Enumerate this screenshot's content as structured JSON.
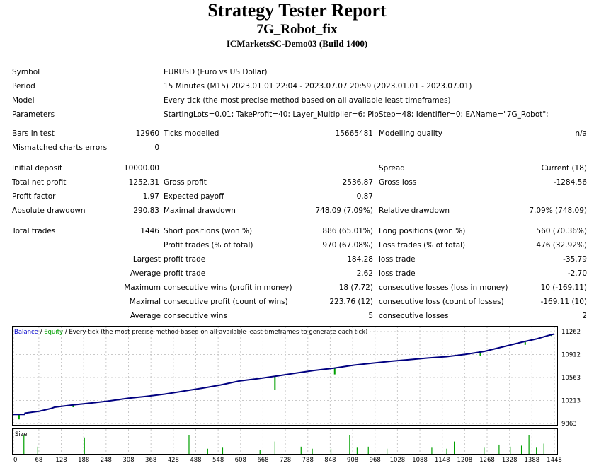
{
  "header": {
    "title": "Strategy Tester Report",
    "subtitle": "7G_Robot_fix",
    "server": "ICMarketsSC-Demo03 (Build 1400)"
  },
  "settings": {
    "symbol_label": "Symbol",
    "symbol_value": "EURUSD (Euro vs US Dollar)",
    "period_label": "Period",
    "period_value": "15 Minutes (M15) 2023.01.01 22:04 - 2023.07.07 20:59 (2023.01.01 - 2023.07.01)",
    "model_label": "Model",
    "model_value": "Every tick (the most precise method based on all available least timeframes)",
    "parameters_label": "Parameters",
    "parameters_value": "StartingLots=0.01; TakeProfit=40; Layer_Multiplier=6; PipStep=48; Identifier=0; EAName=\"7G_Robot\";"
  },
  "bars": {
    "bars_label": "Bars in test",
    "bars_value": "12960",
    "ticks_label": "Ticks modelled",
    "ticks_value": "15665481",
    "quality_label": "Modelling quality",
    "quality_value": "n/a",
    "mismatch_label": "Mismatched charts errors",
    "mismatch_value": "0"
  },
  "results": {
    "initial_deposit_label": "Initial deposit",
    "initial_deposit_value": "10000.00",
    "spread_label": "Spread",
    "spread_value": "Current (18)",
    "net_profit_label": "Total net profit",
    "net_profit_value": "1252.31",
    "gross_profit_label": "Gross profit",
    "gross_profit_value": "2536.87",
    "gross_loss_label": "Gross loss",
    "gross_loss_value": "-1284.56",
    "profit_factor_label": "Profit factor",
    "profit_factor_value": "1.97",
    "expected_payoff_label": "Expected payoff",
    "expected_payoff_value": "0.87",
    "abs_dd_label": "Absolute drawdown",
    "abs_dd_value": "290.83",
    "max_dd_label": "Maximal drawdown",
    "max_dd_value": "748.09 (7.09%)",
    "rel_dd_label": "Relative drawdown",
    "rel_dd_value": "7.09% (748.09)"
  },
  "trades": {
    "total_label": "Total trades",
    "total_value": "1446",
    "short_label": "Short positions (won %)",
    "short_value": "886 (65.01%)",
    "long_label": "Long positions (won %)",
    "long_value": "560 (70.36%)",
    "profit_trades_label": "Profit trades (% of total)",
    "profit_trades_value": "970 (67.08%)",
    "loss_trades_label": "Loss trades (% of total)",
    "loss_trades_value": "476 (32.92%)",
    "largest_label": "Largest",
    "largest_profit_label": "profit trade",
    "largest_profit_value": "184.28",
    "largest_loss_label": "loss trade",
    "largest_loss_value": "-35.79",
    "average_label": "Average",
    "average_profit_label": "profit trade",
    "average_profit_value": "2.62",
    "average_loss_label": "loss trade",
    "average_loss_value": "-2.70",
    "maximum_label": "Maximum",
    "max_cons_wins_label": "consecutive wins (profit in money)",
    "max_cons_wins_value": "18 (7.72)",
    "max_cons_losses_label": "consecutive losses (loss in money)",
    "max_cons_losses_value": "10 (-169.11)",
    "maximal_label": "Maximal",
    "maximal_cons_profit_label": "consecutive profit (count of wins)",
    "maximal_cons_profit_value": "223.76 (12)",
    "maximal_cons_loss_label": "consecutive loss (count of losses)",
    "maximal_cons_loss_value": "-169.11 (10)",
    "avg_label": "Average",
    "avg_cons_wins_label": "consecutive wins",
    "avg_cons_wins_value": "5",
    "avg_cons_losses_label": "consecutive losses",
    "avg_cons_losses_value": "2"
  },
  "chart_data": {
    "type": "line",
    "legend": {
      "balance": "Balance",
      "sep1": " / ",
      "equity": "Equity",
      "sep2": " / Every tick (the most precise method based on all available least timeframes to generate each tick)"
    },
    "size_label": "Size",
    "colors": {
      "balance": "#000080",
      "equity": "#00a000",
      "size": "#00a000",
      "legend_blue": "#0000cc"
    },
    "y_ticks": [
      11262,
      10912,
      10563,
      10213,
      9863
    ],
    "ylim": [
      9863,
      11262
    ],
    "x_ticks": [
      0,
      68,
      128,
      188,
      248,
      308,
      368,
      428,
      488,
      548,
      608,
      668,
      728,
      788,
      848,
      908,
      968,
      1028,
      1088,
      1148,
      1208,
      1268,
      1328,
      1388,
      1448
    ],
    "xlim": [
      0,
      1448
    ],
    "balance_points": [
      [
        0,
        10000
      ],
      [
        30,
        10000
      ],
      [
        31,
        10020
      ],
      [
        70,
        10050
      ],
      [
        100,
        10090
      ],
      [
        110,
        10110
      ],
      [
        160,
        10145
      ],
      [
        210,
        10175
      ],
      [
        255,
        10205
      ],
      [
        305,
        10245
      ],
      [
        355,
        10275
      ],
      [
        405,
        10310
      ],
      [
        455,
        10355
      ],
      [
        505,
        10400
      ],
      [
        555,
        10450
      ],
      [
        605,
        10510
      ],
      [
        655,
        10545
      ],
      [
        705,
        10585
      ],
      [
        750,
        10625
      ],
      [
        805,
        10670
      ],
      [
        858,
        10705
      ],
      [
        910,
        10750
      ],
      [
        960,
        10780
      ],
      [
        1010,
        10810
      ],
      [
        1060,
        10835
      ],
      [
        1110,
        10860
      ],
      [
        1160,
        10880
      ],
      [
        1210,
        10915
      ],
      [
        1260,
        10960
      ],
      [
        1310,
        11030
      ],
      [
        1360,
        11100
      ],
      [
        1400,
        11150
      ],
      [
        1430,
        11200
      ],
      [
        1448,
        11225
      ]
    ],
    "equity_dips": [
      [
        15,
        9925
      ],
      [
        160,
        10110
      ],
      [
        700,
        10370
      ],
      [
        860,
        10610
      ],
      [
        1250,
        10895
      ],
      [
        1370,
        11060
      ],
      [
        1440,
        11195
      ]
    ],
    "size_bars": [
      [
        28,
        0.9
      ],
      [
        65,
        0.35
      ],
      [
        190,
        0.8
      ],
      [
        470,
        0.9
      ],
      [
        520,
        0.25
      ],
      [
        560,
        0.3
      ],
      [
        660,
        0.2
      ],
      [
        700,
        0.6
      ],
      [
        770,
        0.35
      ],
      [
        800,
        0.25
      ],
      [
        850,
        0.25
      ],
      [
        900,
        0.9
      ],
      [
        920,
        0.3
      ],
      [
        950,
        0.35
      ],
      [
        1000,
        0.25
      ],
      [
        1120,
        0.3
      ],
      [
        1160,
        0.25
      ],
      [
        1180,
        0.6
      ],
      [
        1260,
        0.3
      ],
      [
        1300,
        0.45
      ],
      [
        1330,
        0.35
      ],
      [
        1360,
        0.4
      ],
      [
        1380,
        0.9
      ],
      [
        1400,
        0.3
      ],
      [
        1420,
        0.5
      ]
    ]
  }
}
